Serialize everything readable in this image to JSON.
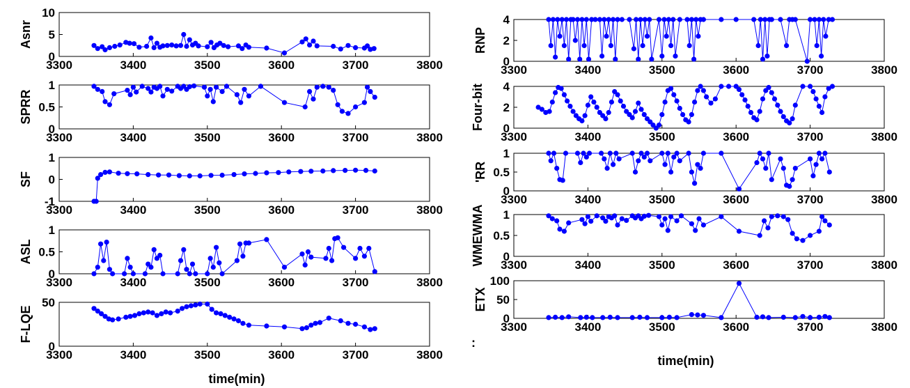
{
  "figure": {
    "line_color": "#0000ff",
    "marker": "filled-circle",
    "left_xlabel": "time(min)",
    "right_xlabel": "time(min)",
    "right_footnote": ":"
  },
  "chart_data": [
    {
      "id": "asnr",
      "type": "line",
      "ylabel": "Asnr",
      "xlim": [
        3300,
        3800
      ],
      "ylim": [
        0,
        10
      ],
      "xticks": [
        "3300",
        "3400",
        "3500",
        "3600",
        "3700",
        "3800"
      ],
      "yticks": [
        "0",
        "5",
        "10"
      ],
      "x": [
        3347,
        3352,
        3358,
        3362,
        3368,
        3375,
        3382,
        3390,
        3395,
        3401,
        3408,
        3418,
        3424,
        3428,
        3432,
        3436,
        3440,
        3446,
        3452,
        3458,
        3464,
        3468,
        3472,
        3476,
        3480,
        3484,
        3488,
        3500,
        3505,
        3509,
        3513,
        3517,
        3522,
        3528,
        3542,
        3547,
        3552,
        3556,
        3580,
        3604,
        3628,
        3633,
        3638,
        3643,
        3648,
        3670,
        3680,
        3690,
        3700,
        3712,
        3716,
        3720,
        3725
      ],
      "y": [
        2.5,
        1.8,
        2.2,
        1.5,
        2.0,
        2.3,
        2.6,
        3.2,
        3.0,
        2.9,
        2.1,
        2.3,
        4.2,
        2.0,
        3.0,
        2.1,
        2.4,
        2.5,
        2.6,
        2.4,
        2.5,
        5.0,
        2.3,
        3.8,
        2.6,
        3.0,
        2.4,
        2.2,
        3.2,
        2.0,
        2.6,
        3.0,
        2.5,
        2.2,
        2.4,
        1.8,
        2.6,
        2.1,
        1.9,
        0.8,
        3.3,
        4.0,
        2.6,
        3.5,
        2.4,
        2.3,
        1.7,
        2.5,
        2.0,
        1.9,
        2.4,
        1.6,
        1.8
      ]
    },
    {
      "id": "sprr",
      "type": "line",
      "ylabel": "SPRR",
      "xlim": [
        3300,
        3800
      ],
      "ylim": [
        0,
        1
      ],
      "xticks": [
        "3300",
        "3400",
        "3500",
        "3600",
        "3700",
        "3800"
      ],
      "yticks": [
        "0",
        "0.5",
        "1"
      ],
      "x": [
        3347,
        3352,
        3358,
        3362,
        3368,
        3374,
        3392,
        3396,
        3400,
        3404,
        3412,
        3420,
        3424,
        3428,
        3432,
        3436,
        3440,
        3446,
        3452,
        3460,
        3464,
        3468,
        3472,
        3476,
        3482,
        3496,
        3500,
        3504,
        3508,
        3512,
        3520,
        3526,
        3540,
        3545,
        3550,
        3556,
        3572,
        3604,
        3632,
        3638,
        3643,
        3648,
        3656,
        3664,
        3670,
        3676,
        3682,
        3690,
        3700,
        3712,
        3716,
        3720,
        3726
      ],
      "y": [
        0.97,
        0.9,
        0.85,
        0.62,
        0.55,
        0.8,
        0.88,
        0.78,
        0.95,
        0.84,
        0.97,
        0.92,
        0.84,
        0.95,
        0.92,
        0.97,
        0.75,
        0.9,
        0.86,
        0.97,
        0.92,
        0.97,
        0.9,
        0.96,
        0.98,
        0.95,
        0.75,
        0.9,
        0.62,
        0.95,
        0.85,
        0.97,
        0.78,
        0.6,
        0.9,
        0.75,
        0.97,
        0.6,
        0.5,
        0.85,
        0.68,
        0.95,
        0.97,
        0.95,
        0.88,
        0.55,
        0.4,
        0.35,
        0.5,
        0.6,
        0.95,
        0.85,
        0.72
      ]
    },
    {
      "id": "sf",
      "type": "line",
      "ylabel": "SF",
      "xlim": [
        3300,
        3800
      ],
      "ylim": [
        -1,
        1
      ],
      "xticks": [
        "3300",
        "3400",
        "3500",
        "3600",
        "3700",
        "3800"
      ],
      "yticks": [
        "-1",
        "0",
        "1"
      ],
      "x": [
        3347,
        3350,
        3352,
        3356,
        3362,
        3368,
        3380,
        3392,
        3405,
        3420,
        3434,
        3448,
        3462,
        3476,
        3490,
        3505,
        3520,
        3536,
        3550,
        3565,
        3580,
        3596,
        3610,
        3626,
        3640,
        3656,
        3670,
        3686,
        3700,
        3714,
        3726
      ],
      "y": [
        -1.0,
        -1.0,
        0.05,
        0.22,
        0.32,
        0.34,
        0.28,
        0.26,
        0.25,
        0.22,
        0.2,
        0.2,
        0.17,
        0.16,
        0.16,
        0.18,
        0.19,
        0.22,
        0.25,
        0.27,
        0.3,
        0.31,
        0.34,
        0.36,
        0.37,
        0.38,
        0.4,
        0.41,
        0.42,
        0.41,
        0.38
      ]
    },
    {
      "id": "asl",
      "type": "line",
      "ylabel": "ASL",
      "xlim": [
        3300,
        3800
      ],
      "ylim": [
        0,
        1
      ],
      "xticks": [
        "3300",
        "3400",
        "3500",
        "3600",
        "3700",
        "3800"
      ],
      "yticks": [
        "0",
        "0.5",
        "1"
      ],
      "x": [
        3347,
        3352,
        3356,
        3360,
        3364,
        3368,
        3372,
        3388,
        3392,
        3396,
        3400,
        3416,
        3420,
        3424,
        3428,
        3432,
        3436,
        3440,
        3460,
        3464,
        3468,
        3472,
        3476,
        3480,
        3484,
        3500,
        3504,
        3508,
        3512,
        3516,
        3520,
        3540,
        3544,
        3548,
        3552,
        3556,
        3580,
        3604,
        3628,
        3632,
        3636,
        3640,
        3660,
        3664,
        3668,
        3672,
        3676,
        3684,
        3700,
        3706,
        3712,
        3718,
        3726
      ],
      "y": [
        0.0,
        0.15,
        0.68,
        0.3,
        0.72,
        0.1,
        0.0,
        0.0,
        0.35,
        0.15,
        0.0,
        0.0,
        0.22,
        0.15,
        0.55,
        0.35,
        0.42,
        0.0,
        0.0,
        0.3,
        0.55,
        0.1,
        0.0,
        0.22,
        0.0,
        0.0,
        0.35,
        0.15,
        0.6,
        0.25,
        0.0,
        0.3,
        0.68,
        0.4,
        0.7,
        0.7,
        0.78,
        0.15,
        0.45,
        0.2,
        0.5,
        0.38,
        0.35,
        0.58,
        0.3,
        0.8,
        0.82,
        0.6,
        0.35,
        0.58,
        0.4,
        0.58,
        0.05
      ]
    },
    {
      "id": "flqe",
      "type": "line",
      "ylabel": "F-LQE",
      "xlim": [
        3300,
        3800
      ],
      "ylim": [
        0,
        50
      ],
      "xticks": [
        "3300",
        "3400",
        "3500",
        "3600",
        "3700",
        "3800"
      ],
      "yticks": [
        "0",
        "50"
      ],
      "x": [
        3347,
        3352,
        3357,
        3362,
        3367,
        3372,
        3380,
        3390,
        3396,
        3402,
        3408,
        3414,
        3420,
        3426,
        3432,
        3438,
        3444,
        3450,
        3460,
        3466,
        3472,
        3478,
        3484,
        3490,
        3500,
        3506,
        3512,
        3518,
        3524,
        3530,
        3536,
        3542,
        3548,
        3556,
        3580,
        3604,
        3628,
        3634,
        3640,
        3646,
        3652,
        3664,
        3680,
        3690,
        3700,
        3712,
        3720,
        3726
      ],
      "y": [
        43,
        40,
        37,
        34,
        31,
        30,
        31,
        33,
        34,
        35,
        37,
        38,
        39,
        38,
        35,
        37,
        39,
        38,
        40,
        43,
        45,
        46,
        47,
        48,
        48,
        42,
        38,
        37,
        35,
        33,
        31,
        29,
        26,
        24,
        23,
        22,
        20,
        21,
        24,
        26,
        27,
        32,
        29,
        26,
        25,
        22,
        19,
        20
      ]
    },
    {
      "id": "rnp",
      "type": "line",
      "ylabel": "RNP",
      "xlim": [
        3300,
        3800
      ],
      "ylim": [
        0,
        4
      ],
      "xticks": [
        "3300",
        "3400",
        "3500",
        "3600",
        "3700",
        "3800"
      ],
      "yticks": [
        "0",
        "2",
        "4"
      ],
      "x": [
        3347,
        3350,
        3353,
        3356,
        3359,
        3362,
        3365,
        3368,
        3371,
        3374,
        3377,
        3380,
        3383,
        3386,
        3389,
        3392,
        3395,
        3398,
        3401,
        3405,
        3410,
        3416,
        3419,
        3422,
        3425,
        3428,
        3431,
        3434,
        3437,
        3440,
        3446,
        3456,
        3462,
        3465,
        3468,
        3471,
        3474,
        3477,
        3480,
        3483,
        3486,
        3496,
        3500,
        3503,
        3506,
        3509,
        3512,
        3515,
        3518,
        3524,
        3534,
        3537,
        3540,
        3543,
        3546,
        3549,
        3552,
        3556,
        3580,
        3600,
        3624,
        3630,
        3633,
        3636,
        3639,
        3642,
        3645,
        3648,
        3660,
        3668,
        3672,
        3676,
        3680,
        3696,
        3700,
        3706,
        3709,
        3712,
        3715,
        3718,
        3721,
        3725,
        3730
      ],
      "y": [
        4,
        1.5,
        4,
        0.4,
        4,
        2.4,
        4,
        1.5,
        4,
        0.2,
        4,
        4,
        2.0,
        4,
        0.2,
        4,
        1.5,
        4,
        0.2,
        4,
        4,
        4,
        0.5,
        4,
        2.4,
        4,
        1.5,
        4,
        0.2,
        4,
        4,
        4,
        1.2,
        4,
        0.2,
        4,
        1.5,
        4,
        2.4,
        4,
        0.2,
        4,
        0.5,
        4,
        2.4,
        4,
        1.5,
        4,
        0.5,
        4,
        4,
        1.5,
        4,
        0.2,
        4,
        2.4,
        4,
        4,
        4,
        4,
        4,
        1.5,
        4,
        0.2,
        4,
        0.5,
        4,
        4,
        4,
        1.5,
        4,
        4,
        4,
        0.0,
        4,
        4,
        1.5,
        4,
        0.5,
        4,
        2.4,
        4,
        4
      ]
    },
    {
      "id": "fourbit",
      "type": "line",
      "ylabel": "Four-bit",
      "xlim": [
        3300,
        3800
      ],
      "ylim": [
        0,
        4
      ],
      "xticks": [
        "3300",
        "3400",
        "3500",
        "3600",
        "3700",
        "3800"
      ],
      "yticks": [
        "0",
        "2",
        "4"
      ],
      "x": [
        3333,
        3338,
        3343,
        3348,
        3352,
        3356,
        3360,
        3364,
        3368,
        3372,
        3376,
        3380,
        3384,
        3388,
        3392,
        3396,
        3400,
        3404,
        3408,
        3412,
        3416,
        3420,
        3424,
        3428,
        3432,
        3436,
        3440,
        3444,
        3448,
        3452,
        3456,
        3460,
        3464,
        3468,
        3472,
        3476,
        3480,
        3484,
        3488,
        3492,
        3496,
        3500,
        3504,
        3508,
        3512,
        3516,
        3520,
        3524,
        3528,
        3532,
        3536,
        3540,
        3544,
        3548,
        3552,
        3556,
        3560,
        3566,
        3572,
        3580,
        3590,
        3600,
        3604,
        3608,
        3612,
        3616,
        3620,
        3624,
        3628,
        3632,
        3636,
        3640,
        3644,
        3648,
        3652,
        3656,
        3660,
        3664,
        3668,
        3672,
        3676,
        3680,
        3690,
        3700,
        3704,
        3708,
        3712,
        3716,
        3720,
        3725,
        3730
      ],
      "y": [
        2.0,
        1.8,
        1.5,
        1.6,
        2.5,
        3.4,
        3.9,
        3.8,
        3.2,
        2.6,
        2.1,
        1.6,
        1.2,
        0.9,
        0.7,
        1.2,
        2.2,
        3.0,
        2.5,
        2.0,
        1.5,
        1.2,
        0.9,
        1.5,
        2.5,
        3.5,
        3.2,
        2.6,
        2.1,
        1.6,
        1.3,
        1.0,
        1.6,
        2.4,
        1.8,
        1.3,
        0.9,
        0.6,
        0.3,
        0.0,
        0.3,
        1.3,
        2.5,
        3.6,
        3.8,
        3.2,
        2.6,
        1.9,
        1.3,
        0.8,
        0.6,
        1.3,
        2.5,
        3.6,
        4.0,
        3.6,
        3.0,
        2.4,
        2.8,
        4.0,
        4.0,
        4.0,
        3.7,
        3.2,
        2.7,
        2.1,
        1.5,
        1.0,
        0.8,
        1.6,
        2.8,
        3.6,
        3.9,
        3.4,
        2.8,
        2.2,
        1.6,
        1.1,
        0.7,
        0.5,
        0.9,
        2.2,
        4.0,
        4.0,
        3.5,
        2.8,
        2.1,
        1.5,
        3.0,
        3.8,
        4.0
      ]
    },
    {
      "id": "rr",
      "type": "line",
      "ylabel": "'RR",
      "xlim": [
        3300,
        3800
      ],
      "ylim": [
        0,
        1
      ],
      "xticks": [
        "3300",
        "3400",
        "3500",
        "3600",
        "3700",
        "3800"
      ],
      "yticks": [
        "0",
        "0.5",
        "1"
      ],
      "x": [
        3347,
        3350,
        3354,
        3358,
        3362,
        3366,
        3370,
        3386,
        3390,
        3394,
        3398,
        3402,
        3418,
        3422,
        3426,
        3430,
        3434,
        3438,
        3442,
        3460,
        3464,
        3468,
        3472,
        3476,
        3480,
        3484,
        3500,
        3504,
        3508,
        3512,
        3516,
        3520,
        3524,
        3536,
        3540,
        3544,
        3548,
        3552,
        3556,
        3580,
        3604,
        3628,
        3632,
        3636,
        3640,
        3644,
        3648,
        3660,
        3664,
        3668,
        3672,
        3676,
        3680,
        3700,
        3704,
        3708,
        3712,
        3716,
        3720,
        3726
      ],
      "y": [
        1,
        0.8,
        1,
        0.6,
        0.3,
        0.28,
        1,
        1,
        0.75,
        1,
        0.9,
        1,
        1,
        0.85,
        0.6,
        1,
        0.7,
        1,
        0.85,
        1,
        0.5,
        0.8,
        1,
        0.9,
        1,
        0.8,
        1,
        0.7,
        1,
        0.5,
        0.9,
        1,
        0.8,
        1,
        0.5,
        0.2,
        0.7,
        0.6,
        1,
        1,
        0.05,
        0.75,
        1,
        0.85,
        0.6,
        1,
        0.3,
        0.85,
        0.6,
        0.15,
        0.12,
        0.3,
        0.6,
        0.85,
        0.4,
        0.7,
        1,
        0.85,
        1,
        0.5
      ]
    },
    {
      "id": "wmewma",
      "type": "line",
      "ylabel": "WMEWMA",
      "xlim": [
        3300,
        3800
      ],
      "ylim": [
        0,
        1
      ],
      "xticks": [
        "3300",
        "3400",
        "3500",
        "3600",
        "3700",
        "3800"
      ],
      "yticks": [
        "0",
        "0.5",
        "1"
      ],
      "x": [
        3347,
        3352,
        3358,
        3362,
        3368,
        3374,
        3392,
        3396,
        3400,
        3404,
        3412,
        3420,
        3424,
        3428,
        3432,
        3436,
        3440,
        3446,
        3452,
        3460,
        3464,
        3468,
        3472,
        3476,
        3482,
        3496,
        3500,
        3504,
        3508,
        3512,
        3520,
        3526,
        3540,
        3545,
        3550,
        3556,
        3580,
        3604,
        3632,
        3638,
        3643,
        3648,
        3656,
        3664,
        3670,
        3676,
        3682,
        3690,
        3700,
        3712,
        3716,
        3720,
        3726
      ],
      "y": [
        0.97,
        0.9,
        0.85,
        0.65,
        0.6,
        0.8,
        0.88,
        0.78,
        0.95,
        0.84,
        0.97,
        0.92,
        0.84,
        0.95,
        0.92,
        0.97,
        0.75,
        0.9,
        0.86,
        0.97,
        0.92,
        0.97,
        0.9,
        0.96,
        0.98,
        0.95,
        0.75,
        0.9,
        0.62,
        0.95,
        0.85,
        0.97,
        0.78,
        0.62,
        0.9,
        0.75,
        0.95,
        0.6,
        0.5,
        0.85,
        0.68,
        0.95,
        0.97,
        0.95,
        0.88,
        0.55,
        0.42,
        0.38,
        0.5,
        0.6,
        0.95,
        0.85,
        0.75
      ]
    },
    {
      "id": "etx",
      "type": "line",
      "ylabel": "ETX",
      "xlim": [
        3300,
        3800
      ],
      "ylim": [
        0,
        100
      ],
      "xticks": [
        "3300",
        "3400",
        "3500",
        "3600",
        "3700",
        "3800"
      ],
      "yticks": [
        "0",
        "50",
        "100"
      ],
      "x": [
        3347,
        3356,
        3365,
        3374,
        3390,
        3398,
        3406,
        3420,
        3430,
        3440,
        3460,
        3470,
        3480,
        3500,
        3510,
        3520,
        3540,
        3548,
        3556,
        3580,
        3604,
        3628,
        3636,
        3644,
        3664,
        3680,
        3690,
        3700,
        3712,
        3720,
        3726
      ],
      "y": [
        2,
        3,
        2,
        4,
        2,
        3,
        2,
        2,
        3,
        2,
        2,
        3,
        2,
        2,
        3,
        2,
        10,
        9,
        8,
        2,
        93,
        3,
        4,
        2,
        3,
        2,
        5,
        2,
        3,
        5,
        2
      ]
    }
  ]
}
